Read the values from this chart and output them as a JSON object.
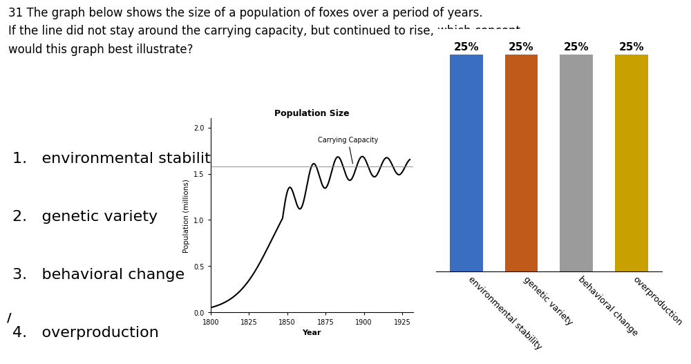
{
  "title_text": "31 The graph below shows the size of a population of foxes over a period of years.\nIf the line did not stay around the carrying capacity, but continued to rise, which concept\nwould this graph best illustrate?",
  "question_items": [
    "1.   environmental stability",
    "2.   genetic variety",
    "3.   behavioral change",
    "4.   overproduction"
  ],
  "bar_categories": [
    "environmental stability",
    "genetic variety",
    "behavioral change",
    "overproduction"
  ],
  "bar_values": [
    25,
    25,
    25,
    25
  ],
  "bar_colors": [
    "#3A6EC1",
    "#C05A1A",
    "#9B9B9B",
    "#C8A000"
  ],
  "bar_labels": [
    "25%",
    "25%",
    "25%",
    "25%"
  ],
  "population_title": "Population Size",
  "population_xlabel": "Year",
  "population_ylabel": "Population (millions)",
  "carrying_capacity_label": "Carrying Capacity",
  "carrying_capacity_value": 1.58,
  "x_ticks": [
    1800,
    1825,
    1850,
    1875,
    1900,
    1925
  ],
  "y_ticks": [
    0.0,
    0.5,
    1.0,
    1.5,
    2.0
  ],
  "background_color": "#FFFFFF",
  "text_color": "#000000",
  "title_fontsize": 12,
  "item_fontsize": 16,
  "bar_label_fontsize": 11
}
